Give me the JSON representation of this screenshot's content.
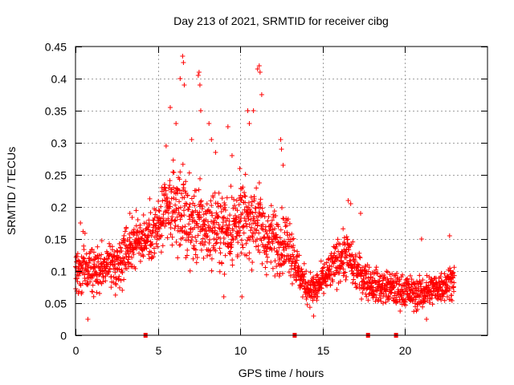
{
  "chart_data": {
    "type": "scatter",
    "title": "Day 213 of 2021, SRMTID for receiver cibg",
    "xlabel": "GPS time / hours",
    "ylabel": "SRMTID / TECUs",
    "xlim": [
      0,
      25
    ],
    "ylim": [
      0,
      0.45
    ],
    "xticks": [
      0,
      5,
      10,
      15,
      20
    ],
    "xtick_labels": [
      "0",
      "5",
      "10",
      "15",
      "20"
    ],
    "yticks": [
      0,
      0.05,
      0.1,
      0.15,
      0.2,
      0.25,
      0.3,
      0.35,
      0.4,
      0.45
    ],
    "ytick_labels": [
      "0",
      "0.05",
      "0.1",
      "0.15",
      "0.2",
      "0.25",
      "0.3",
      "0.35",
      "0.4",
      "0.45"
    ],
    "grid": true,
    "marker": "+",
    "series_color": "#ff0000",
    "gap_markers_x": [
      4.25,
      13.3,
      17.75,
      19.45
    ],
    "series": [
      {
        "name": "SRMTID",
        "profile": {
          "x": [
            0,
            0.5,
            1,
            1.5,
            2,
            2.5,
            3,
            3.5,
            4,
            4.5,
            5,
            5.5,
            6,
            6.5,
            7,
            7.5,
            8,
            8.5,
            9,
            9.5,
            10,
            10.5,
            11,
            11.5,
            12,
            12.5,
            13,
            13.5,
            14,
            14.5,
            15,
            15.5,
            16,
            16.5,
            17,
            17.5,
            18,
            18.5,
            19,
            19.5,
            20,
            20.5,
            21,
            21.5,
            22,
            22.5,
            23
          ],
          "center": [
            0.1,
            0.105,
            0.095,
            0.1,
            0.115,
            0.11,
            0.13,
            0.145,
            0.15,
            0.155,
            0.165,
            0.19,
            0.2,
            0.195,
            0.17,
            0.175,
            0.165,
            0.17,
            0.165,
            0.17,
            0.18,
            0.175,
            0.185,
            0.15,
            0.15,
            0.145,
            0.145,
            0.1,
            0.075,
            0.07,
            0.085,
            0.1,
            0.12,
            0.125,
            0.1,
            0.09,
            0.08,
            0.075,
            0.075,
            0.07,
            0.07,
            0.065,
            0.065,
            0.07,
            0.075,
            0.08,
            0.09
          ],
          "spread": [
            0.035,
            0.04,
            0.035,
            0.035,
            0.035,
            0.035,
            0.04,
            0.04,
            0.035,
            0.04,
            0.045,
            0.055,
            0.06,
            0.065,
            0.06,
            0.06,
            0.05,
            0.055,
            0.055,
            0.06,
            0.06,
            0.055,
            0.06,
            0.05,
            0.05,
            0.045,
            0.05,
            0.03,
            0.025,
            0.025,
            0.025,
            0.03,
            0.035,
            0.035,
            0.03,
            0.03,
            0.025,
            0.025,
            0.025,
            0.025,
            0.025,
            0.025,
            0.025,
            0.025,
            0.025,
            0.025,
            0.025
          ]
        },
        "peaks": [
          {
            "x": 5.5,
            "y": 0.295
          },
          {
            "x": 5.75,
            "y": 0.355
          },
          {
            "x": 6.1,
            "y": 0.33
          },
          {
            "x": 6.35,
            "y": 0.4
          },
          {
            "x": 6.5,
            "y": 0.435
          },
          {
            "x": 6.55,
            "y": 0.425
          },
          {
            "x": 6.6,
            "y": 0.39
          },
          {
            "x": 7.05,
            "y": 0.305
          },
          {
            "x": 7.45,
            "y": 0.405
          },
          {
            "x": 7.5,
            "y": 0.41
          },
          {
            "x": 7.55,
            "y": 0.39
          },
          {
            "x": 7.6,
            "y": 0.35
          },
          {
            "x": 8.1,
            "y": 0.33
          },
          {
            "x": 8.25,
            "y": 0.305
          },
          {
            "x": 8.5,
            "y": 0.285
          },
          {
            "x": 9.25,
            "y": 0.325
          },
          {
            "x": 9.5,
            "y": 0.28
          },
          {
            "x": 10.45,
            "y": 0.35
          },
          {
            "x": 10.55,
            "y": 0.33
          },
          {
            "x": 10.8,
            "y": 0.35
          },
          {
            "x": 11.05,
            "y": 0.415
          },
          {
            "x": 11.15,
            "y": 0.42
          },
          {
            "x": 11.2,
            "y": 0.41
          },
          {
            "x": 11.3,
            "y": 0.375
          },
          {
            "x": 12.45,
            "y": 0.305
          },
          {
            "x": 12.5,
            "y": 0.29
          },
          {
            "x": 12.6,
            "y": 0.265
          },
          {
            "x": 16.55,
            "y": 0.21
          },
          {
            "x": 16.7,
            "y": 0.205
          },
          {
            "x": 17.3,
            "y": 0.19
          },
          {
            "x": 21,
            "y": 0.15
          },
          {
            "x": 22.7,
            "y": 0.155
          },
          {
            "x": 0.3,
            "y": 0.175
          },
          {
            "x": 0.75,
            "y": 0.025
          },
          {
            "x": 3.3,
            "y": 0.19
          },
          {
            "x": 9,
            "y": 0.06
          },
          {
            "x": 10.1,
            "y": 0.06
          },
          {
            "x": 14.45,
            "y": 0.03
          },
          {
            "x": 21.3,
            "y": 0.025
          }
        ]
      }
    ]
  }
}
